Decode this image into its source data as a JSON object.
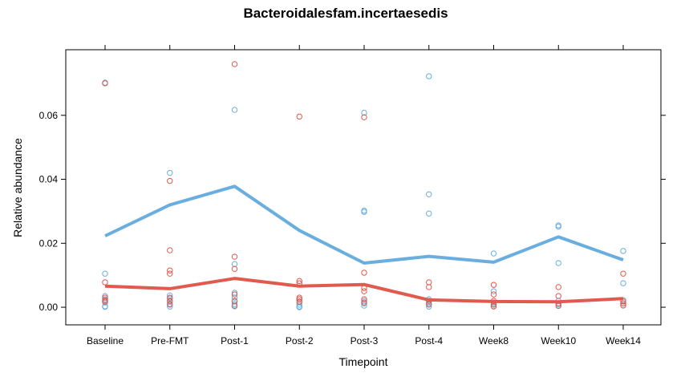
{
  "chart_data": {
    "type": "scatter",
    "title": "Bacteroidalesfam.incertaesedis",
    "xlabel": "Timepoint",
    "ylabel": "Relative abundance",
    "categories": [
      "Baseline",
      "Pre-FMT",
      "Post-1",
      "Post-2",
      "Post-3",
      "Post-4",
      "Week8",
      "Week10",
      "Week14"
    ],
    "ylim": [
      -0.0055,
      0.0805
    ],
    "yticks": [
      0.0,
      0.02,
      0.04,
      0.06
    ],
    "ytick_labels": [
      "0.00",
      "0.02",
      "0.04",
      "0.06"
    ],
    "grid": false,
    "series": [
      {
        "color": "#6aaee0",
        "line": [
          0.0223,
          0.032,
          0.0378,
          0.024,
          0.0138,
          0.0159,
          0.0141,
          0.022,
          0.0148
        ],
        "points": [
          [
            0.0702,
            0.0105,
            0.0035,
            0.0025,
            0.0015,
            0.0003,
            0.0001
          ],
          [
            0.042,
            0.0037,
            0.0027,
            0.0018,
            0.0008,
            0.0002
          ],
          [
            0.0617,
            0.0135,
            0.0045,
            0.003,
            0.0018,
            0.001,
            0.0003
          ],
          [
            0.0025,
            0.0015,
            0.0008,
            0.0002,
            0.0
          ],
          [
            0.0608,
            0.0302,
            0.0298,
            0.002,
            0.0012,
            0.0005
          ],
          [
            0.0722,
            0.0353,
            0.0293,
            0.0025,
            0.0015,
            0.0008,
            0.0002
          ],
          [
            0.0168,
            0.005,
            0.0015,
            0.0008,
            0.0002
          ],
          [
            0.0256,
            0.0252,
            0.0138,
            0.002,
            0.001,
            0.0004
          ],
          [
            0.0176,
            0.0075,
            0.0022,
            0.0012,
            0.0005
          ]
        ]
      },
      {
        "color": "#e05a4e",
        "line": [
          0.0066,
          0.0058,
          0.009,
          0.0066,
          0.0071,
          0.0023,
          0.0018,
          0.0017,
          0.0027
        ],
        "points": [
          [
            0.07,
            0.0078,
            0.003,
            0.0022,
            0.0018
          ],
          [
            0.0395,
            0.0178,
            0.0115,
            0.0105,
            0.003,
            0.002,
            0.001
          ],
          [
            0.076,
            0.0158,
            0.012,
            0.004,
            0.002,
            0.0005
          ],
          [
            0.0596,
            0.0082,
            0.0075,
            0.003,
            0.0025,
            0.0018
          ],
          [
            0.0594,
            0.0108,
            0.006,
            0.005,
            0.0025,
            0.0015
          ],
          [
            0.0078,
            0.0063,
            0.002,
            0.001
          ],
          [
            0.007,
            0.004,
            0.002,
            0.001,
            0.0003
          ],
          [
            0.0063,
            0.0035,
            0.0012,
            0.0005
          ],
          [
            0.0105,
            0.0018,
            0.0012,
            0.0006
          ]
        ]
      }
    ]
  }
}
